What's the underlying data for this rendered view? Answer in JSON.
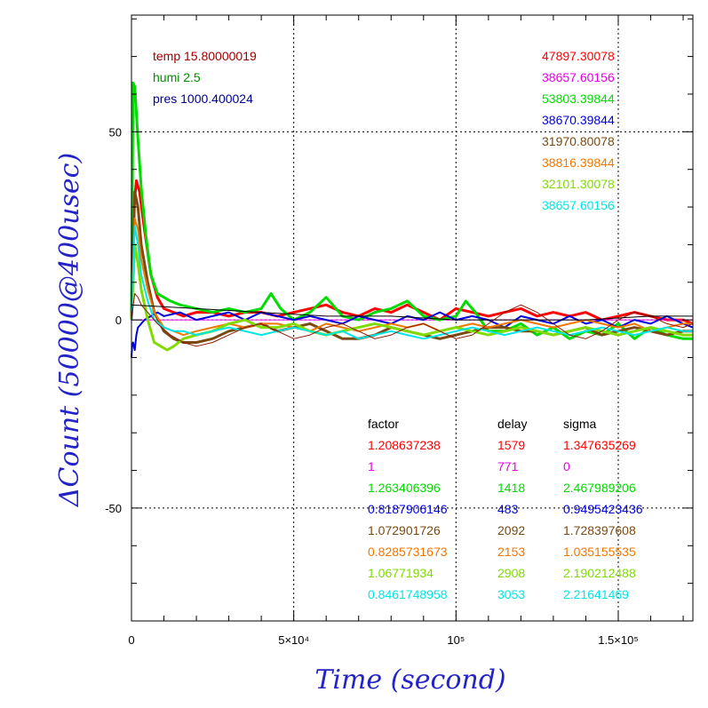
{
  "chart_data": {
    "type": "line",
    "xlabel": "Time (second)",
    "ylabel": "ΔCount (50000@400usec)",
    "xlim": [
      0,
      173000
    ],
    "ylim": [
      -80,
      81
    ],
    "x_ticks": [
      {
        "value": 0,
        "label": "0"
      },
      {
        "value": 50000,
        "label": "5×10⁴"
      },
      {
        "value": 100000,
        "label": "10⁵"
      },
      {
        "value": 150000,
        "label": "1.5×10⁵"
      }
    ],
    "y_ticks": [
      {
        "value": 50,
        "label": "50"
      },
      {
        "value": 0,
        "label": "0"
      },
      {
        "value": -50,
        "label": "-50"
      }
    ],
    "grid": "dotted at major ticks",
    "env_info": [
      {
        "text": "temp 15.80000019",
        "color": "#a00000"
      },
      {
        "text": "humi 2.5",
        "color": "#008c00"
      },
      {
        "text": "pres 1000.400024",
        "color": "#000090"
      }
    ],
    "legend": {
      "headers": [
        "factor",
        "delay",
        "sigma"
      ],
      "header_color": "#000000",
      "rows": [
        {
          "count": "47897.30078",
          "factor": "1.208637238",
          "delay": "1579",
          "sigma": "1.347635269",
          "color": "#ff0000"
        },
        {
          "count": "38657.60156",
          "factor": "1",
          "delay": "771",
          "sigma": "0",
          "color": "#e600e6"
        },
        {
          "count": "53803.39844",
          "factor": "1.263406396",
          "delay": "1418",
          "sigma": "2.467989206",
          "color": "#00dc00"
        },
        {
          "count": "38670.39844",
          "factor": "0.8187906146",
          "delay": "483",
          "sigma": "0.9495423436",
          "color": "#0000dc"
        },
        {
          "count": "31970.80078",
          "factor": "1.072901726",
          "delay": "2092",
          "sigma": "1.728397608",
          "color": "#7a4a10"
        },
        {
          "count": "38816.39844",
          "factor": "0.8285731673",
          "delay": "2153",
          "sigma": "1.035155535",
          "color": "#f07800"
        },
        {
          "count": "32101.30078",
          "factor": "1.06771934",
          "delay": "2908",
          "sigma": "2.190212488",
          "color": "#80dc00"
        },
        {
          "count": "38657.60156",
          "factor": "0.8461748958",
          "delay": "3053",
          "sigma": "2.21641469",
          "color": "#00e6e6"
        }
      ]
    },
    "series": [
      {
        "color": "#ff0000",
        "width": 3,
        "x": [
          0,
          800,
          1500,
          2500,
          4000,
          6000,
          8000,
          10000,
          13000,
          16000,
          20000,
          25000,
          30000,
          35000,
          40000,
          45000,
          50000,
          55000,
          60000,
          65000,
          70000,
          75000,
          80000,
          85000,
          90000,
          95000,
          100000,
          105000,
          110000,
          115000,
          120000,
          125000,
          130000,
          135000,
          140000,
          145000,
          150000,
          155000,
          160000,
          165000,
          170000,
          173000
        ],
        "y": [
          0,
          30,
          37,
          34,
          24,
          12,
          6,
          3,
          2,
          1,
          2,
          2,
          1,
          2,
          2,
          1,
          2,
          3,
          4,
          2,
          1,
          3,
          2,
          4,
          2,
          0,
          3,
          2,
          1,
          2,
          3,
          1,
          2,
          1,
          2,
          0,
          1,
          2,
          1,
          0,
          0,
          -1
        ]
      },
      {
        "color": "#e600e6",
        "width": 1,
        "x": [
          0,
          173000
        ],
        "y": [
          0,
          0
        ]
      },
      {
        "color": "#00dc00",
        "width": 3,
        "x": [
          0,
          500,
          1000,
          2000,
          3000,
          4500,
          6000,
          8000,
          10000,
          12000,
          15000,
          20000,
          25000,
          30000,
          35000,
          40000,
          43000,
          46000,
          50000,
          55000,
          60000,
          65000,
          70000,
          75000,
          80000,
          85000,
          90000,
          95000,
          100000,
          103000,
          106000,
          110000,
          115000,
          120000,
          125000,
          130000,
          135000,
          140000,
          145000,
          150000,
          155000,
          160000,
          165000,
          170000,
          173000
        ],
        "y": [
          0,
          63,
          62,
          48,
          35,
          22,
          12,
          7,
          6,
          5,
          4,
          3,
          2,
          3,
          2,
          3,
          7,
          3,
          0,
          2,
          6,
          1,
          0,
          2,
          3,
          5,
          1,
          0,
          1,
          5,
          2,
          -3,
          -3,
          -1,
          -4,
          -2,
          -5,
          -3,
          -4,
          -1,
          -5,
          -2,
          -4,
          -5,
          -5
        ]
      },
      {
        "color": "#0000dc",
        "width": 2,
        "x": [
          0,
          200,
          500,
          1000,
          1500,
          2000,
          3000,
          4000,
          6000,
          8000,
          10000,
          15000,
          20000,
          25000,
          30000,
          35000,
          40000,
          45000,
          50000,
          55000,
          60000,
          65000,
          70000,
          75000,
          80000,
          85000,
          90000,
          95000,
          100000,
          105000,
          110000,
          115000,
          120000,
          125000,
          130000,
          135000,
          140000,
          145000,
          150000,
          155000,
          160000,
          165000,
          170000,
          173000
        ],
        "y": [
          -10,
          -7,
          -6,
          -8,
          -4,
          -2,
          -1,
          0,
          1,
          2,
          1,
          2,
          0,
          1,
          2,
          0,
          2,
          1,
          0,
          1,
          0,
          -1,
          1,
          0,
          -1,
          1,
          0,
          2,
          0,
          1,
          0,
          -2,
          1,
          0,
          -1,
          1,
          -1,
          0,
          -2,
          0,
          -1,
          1,
          -1,
          -2
        ]
      },
      {
        "color": "#7a4a10",
        "width": 3,
        "x": [
          0,
          1000,
          2000,
          3000,
          5000,
          7000,
          10000,
          13000,
          16000,
          20000,
          25000,
          30000,
          35000,
          40000,
          45000,
          50000,
          55000,
          60000,
          65000,
          70000,
          75000,
          80000,
          85000,
          90000,
          95000,
          100000,
          105000,
          110000,
          115000,
          120000,
          125000,
          130000,
          135000,
          140000,
          145000,
          150000,
          155000,
          160000,
          165000,
          170000,
          173000
        ],
        "y": [
          0,
          34,
          30,
          20,
          10,
          2,
          -3,
          -5,
          -6,
          -6,
          -5,
          -3,
          -2,
          -1,
          -3,
          -2,
          -1,
          -3,
          -5,
          -5,
          -4,
          -2,
          -3,
          -4,
          -5,
          -4,
          -3,
          -2,
          -2,
          -3,
          -3,
          -4,
          -3,
          -2,
          -4,
          -3,
          -2,
          -3,
          -4,
          -3,
          -3
        ]
      },
      {
        "color": "#f07800",
        "width": 2,
        "x": [
          0,
          1000,
          2000,
          3000,
          5000,
          7000,
          10000,
          13000,
          16000,
          20000,
          25000,
          30000,
          35000,
          40000,
          45000,
          50000,
          55000,
          60000,
          65000,
          70000,
          75000,
          80000,
          85000,
          90000,
          95000,
          100000,
          105000,
          110000,
          115000,
          120000,
          125000,
          130000,
          135000,
          140000,
          145000,
          150000,
          155000,
          160000,
          165000,
          170000,
          173000
        ],
        "y": [
          0,
          27,
          24,
          16,
          8,
          2,
          -2,
          -3,
          -4,
          -3,
          -2,
          -1,
          -2,
          -1,
          -1,
          -2,
          -3,
          -1,
          -2,
          -3,
          -2,
          -1,
          -2,
          -1,
          -3,
          -2,
          -1,
          -2,
          -1,
          0,
          -1,
          -2,
          -1,
          0,
          -1,
          -2,
          -1,
          -3,
          -2,
          -1,
          -1
        ]
      },
      {
        "color": "#80dc00",
        "width": 3,
        "x": [
          0,
          1000,
          2000,
          3000,
          5000,
          7000,
          9000,
          11000,
          13000,
          16000,
          20000,
          25000,
          30000,
          35000,
          40000,
          45000,
          50000,
          55000,
          60000,
          65000,
          70000,
          75000,
          80000,
          85000,
          90000,
          95000,
          100000,
          105000,
          110000,
          115000,
          120000,
          125000,
          130000,
          135000,
          140000,
          145000,
          150000,
          155000,
          160000,
          165000,
          170000,
          173000
        ],
        "y": [
          0,
          20,
          15,
          8,
          0,
          -6,
          -7,
          -8,
          -7,
          -5,
          -4,
          -3,
          -1,
          0,
          -2,
          -2,
          -1,
          -3,
          -4,
          -3,
          -2,
          -1,
          -2,
          -3,
          -4,
          -3,
          -2,
          -3,
          -4,
          -3,
          -2,
          -3,
          -4,
          -3,
          -2,
          -3,
          -4,
          -3,
          -2,
          -3,
          -4,
          -4
        ]
      },
      {
        "color": "#00e6e6",
        "width": 2,
        "x": [
          0,
          1000,
          2000,
          3000,
          5000,
          7000,
          10000,
          13000,
          16000,
          20000,
          25000,
          30000,
          35000,
          40000,
          45000,
          50000,
          55000,
          60000,
          65000,
          70000,
          75000,
          80000,
          85000,
          90000,
          95000,
          100000,
          105000,
          110000,
          115000,
          120000,
          125000,
          130000,
          135000,
          140000,
          145000,
          150000,
          155000,
          160000,
          165000,
          170000,
          173000
        ],
        "y": [
          0,
          25,
          20,
          12,
          5,
          0,
          -2,
          -3,
          -3,
          -4,
          -3,
          -2,
          -3,
          -4,
          -3,
          -2,
          -3,
          -4,
          -3,
          -5,
          -4,
          -3,
          -4,
          -5,
          -4,
          -3,
          -2,
          -3,
          -4,
          -3,
          -2,
          -3,
          -4,
          -3,
          -2,
          -3,
          -4,
          -3,
          -2,
          -3,
          -3
        ]
      },
      {
        "color": "#8a1800",
        "width": 1,
        "x": [
          0,
          1000,
          2000,
          3000,
          5000,
          8000,
          12000,
          16000,
          20000,
          25000,
          30000,
          35000,
          40000,
          45000,
          50000,
          55000,
          60000,
          65000,
          70000,
          75000,
          80000,
          85000,
          90000,
          95000,
          100000,
          105000,
          110000,
          115000,
          120000,
          125000,
          130000,
          135000,
          140000,
          145000,
          150000,
          155000,
          160000,
          165000,
          170000,
          173000
        ],
        "y": [
          0,
          7,
          6,
          4,
          2,
          -1,
          -4,
          -6,
          -7,
          -6,
          -4,
          -2,
          -1,
          -3,
          -5,
          -4,
          -2,
          -1,
          -3,
          -5,
          -4,
          -2,
          -1,
          -3,
          -5,
          -4,
          -1,
          2,
          4,
          2,
          -1,
          -4,
          -5,
          -3,
          0,
          2,
          1,
          -1,
          -2,
          -1
        ]
      },
      {
        "color": "#000000",
        "width": 1,
        "x": [
          0,
          20000,
          40000,
          60000,
          80000,
          100000,
          120000,
          140000,
          160000,
          173000
        ],
        "y": [
          4,
          3,
          2,
          1,
          1,
          0,
          0,
          0,
          1,
          1
        ]
      }
    ]
  }
}
